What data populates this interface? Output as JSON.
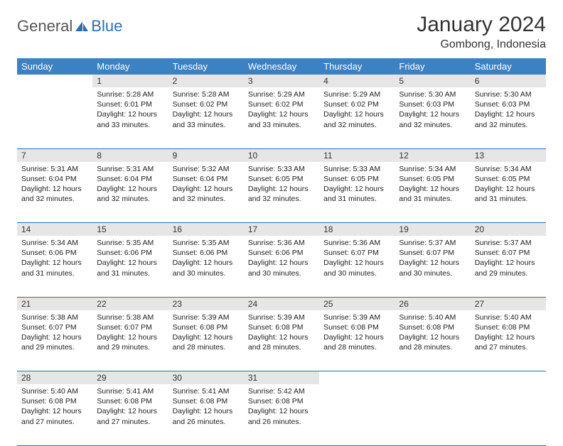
{
  "logo": {
    "text1": "General",
    "text2": "Blue"
  },
  "title": "January 2024",
  "location": "Gombong, Indonesia",
  "colors": {
    "header_bg": "#3b82c4",
    "header_fg": "#ffffff",
    "daynum_bg": "#e6e6e6",
    "rule": "#2a6fb5",
    "logo_blue": "#2a6fb5",
    "text": "#222222"
  },
  "weekdays": [
    "Sunday",
    "Monday",
    "Tuesday",
    "Wednesday",
    "Thursday",
    "Friday",
    "Saturday"
  ],
  "weeks": [
    [
      null,
      {
        "n": "1",
        "sr": "5:28 AM",
        "ss": "6:01 PM",
        "dl": "12 hours and 33 minutes."
      },
      {
        "n": "2",
        "sr": "5:28 AM",
        "ss": "6:02 PM",
        "dl": "12 hours and 33 minutes."
      },
      {
        "n": "3",
        "sr": "5:29 AM",
        "ss": "6:02 PM",
        "dl": "12 hours and 33 minutes."
      },
      {
        "n": "4",
        "sr": "5:29 AM",
        "ss": "6:02 PM",
        "dl": "12 hours and 32 minutes."
      },
      {
        "n": "5",
        "sr": "5:30 AM",
        "ss": "6:03 PM",
        "dl": "12 hours and 32 minutes."
      },
      {
        "n": "6",
        "sr": "5:30 AM",
        "ss": "6:03 PM",
        "dl": "12 hours and 32 minutes."
      }
    ],
    [
      {
        "n": "7",
        "sr": "5:31 AM",
        "ss": "6:04 PM",
        "dl": "12 hours and 32 minutes."
      },
      {
        "n": "8",
        "sr": "5:31 AM",
        "ss": "6:04 PM",
        "dl": "12 hours and 32 minutes."
      },
      {
        "n": "9",
        "sr": "5:32 AM",
        "ss": "6:04 PM",
        "dl": "12 hours and 32 minutes."
      },
      {
        "n": "10",
        "sr": "5:33 AM",
        "ss": "6:05 PM",
        "dl": "12 hours and 32 minutes."
      },
      {
        "n": "11",
        "sr": "5:33 AM",
        "ss": "6:05 PM",
        "dl": "12 hours and 31 minutes."
      },
      {
        "n": "12",
        "sr": "5:34 AM",
        "ss": "6:05 PM",
        "dl": "12 hours and 31 minutes."
      },
      {
        "n": "13",
        "sr": "5:34 AM",
        "ss": "6:05 PM",
        "dl": "12 hours and 31 minutes."
      }
    ],
    [
      {
        "n": "14",
        "sr": "5:34 AM",
        "ss": "6:06 PM",
        "dl": "12 hours and 31 minutes."
      },
      {
        "n": "15",
        "sr": "5:35 AM",
        "ss": "6:06 PM",
        "dl": "12 hours and 31 minutes."
      },
      {
        "n": "16",
        "sr": "5:35 AM",
        "ss": "6:06 PM",
        "dl": "12 hours and 30 minutes."
      },
      {
        "n": "17",
        "sr": "5:36 AM",
        "ss": "6:06 PM",
        "dl": "12 hours and 30 minutes."
      },
      {
        "n": "18",
        "sr": "5:36 AM",
        "ss": "6:07 PM",
        "dl": "12 hours and 30 minutes."
      },
      {
        "n": "19",
        "sr": "5:37 AM",
        "ss": "6:07 PM",
        "dl": "12 hours and 30 minutes."
      },
      {
        "n": "20",
        "sr": "5:37 AM",
        "ss": "6:07 PM",
        "dl": "12 hours and 29 minutes."
      }
    ],
    [
      {
        "n": "21",
        "sr": "5:38 AM",
        "ss": "6:07 PM",
        "dl": "12 hours and 29 minutes."
      },
      {
        "n": "22",
        "sr": "5:38 AM",
        "ss": "6:07 PM",
        "dl": "12 hours and 29 minutes."
      },
      {
        "n": "23",
        "sr": "5:39 AM",
        "ss": "6:08 PM",
        "dl": "12 hours and 28 minutes."
      },
      {
        "n": "24",
        "sr": "5:39 AM",
        "ss": "6:08 PM",
        "dl": "12 hours and 28 minutes."
      },
      {
        "n": "25",
        "sr": "5:39 AM",
        "ss": "6:08 PM",
        "dl": "12 hours and 28 minutes."
      },
      {
        "n": "26",
        "sr": "5:40 AM",
        "ss": "6:08 PM",
        "dl": "12 hours and 28 minutes."
      },
      {
        "n": "27",
        "sr": "5:40 AM",
        "ss": "6:08 PM",
        "dl": "12 hours and 27 minutes."
      }
    ],
    [
      {
        "n": "28",
        "sr": "5:40 AM",
        "ss": "6:08 PM",
        "dl": "12 hours and 27 minutes."
      },
      {
        "n": "29",
        "sr": "5:41 AM",
        "ss": "6:08 PM",
        "dl": "12 hours and 27 minutes."
      },
      {
        "n": "30",
        "sr": "5:41 AM",
        "ss": "6:08 PM",
        "dl": "12 hours and 26 minutes."
      },
      {
        "n": "31",
        "sr": "5:42 AM",
        "ss": "6:08 PM",
        "dl": "12 hours and 26 minutes."
      },
      null,
      null,
      null
    ]
  ],
  "labels": {
    "sunrise": "Sunrise:",
    "sunset": "Sunset:",
    "daylight": "Daylight:"
  }
}
